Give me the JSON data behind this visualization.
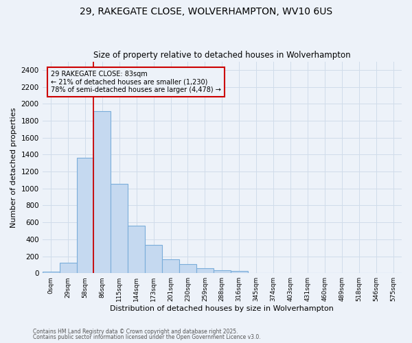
{
  "title_line1": "29, RAKEGATE CLOSE, WOLVERHAMPTON, WV10 6US",
  "title_line2": "Size of property relative to detached houses in Wolverhampton",
  "xlabel": "Distribution of detached houses by size in Wolverhampton",
  "ylabel": "Number of detached properties",
  "footer_line1": "Contains HM Land Registry data © Crown copyright and database right 2025.",
  "footer_line2": "Contains public sector information licensed under the Open Government Licence v3.0.",
  "bin_labels": [
    "0sqm",
    "29sqm",
    "58sqm",
    "86sqm",
    "115sqm",
    "144sqm",
    "173sqm",
    "201sqm",
    "230sqm",
    "259sqm",
    "288sqm",
    "316sqm",
    "345sqm",
    "374sqm",
    "403sqm",
    "431sqm",
    "460sqm",
    "489sqm",
    "518sqm",
    "546sqm",
    "575sqm"
  ],
  "bar_values": [
    15,
    120,
    1360,
    1910,
    1055,
    560,
    335,
    165,
    110,
    62,
    35,
    28,
    0,
    0,
    0,
    0,
    0,
    0,
    0,
    0,
    0
  ],
  "bar_color": "#c5d9f0",
  "bar_edge_color": "#7aadda",
  "grid_color": "#d0dcea",
  "background_color": "#edf2f9",
  "vline_color": "#cc0000",
  "annotation_line1": "29 RAKEGATE CLOSE: 83sqm",
  "annotation_line2": "← 21% of detached houses are smaller (1,230)",
  "annotation_line3": "78% of semi-detached houses are larger (4,478) →",
  "annotation_box_color": "#cc0000",
  "ylim_max": 2500,
  "ytick_step": 200
}
